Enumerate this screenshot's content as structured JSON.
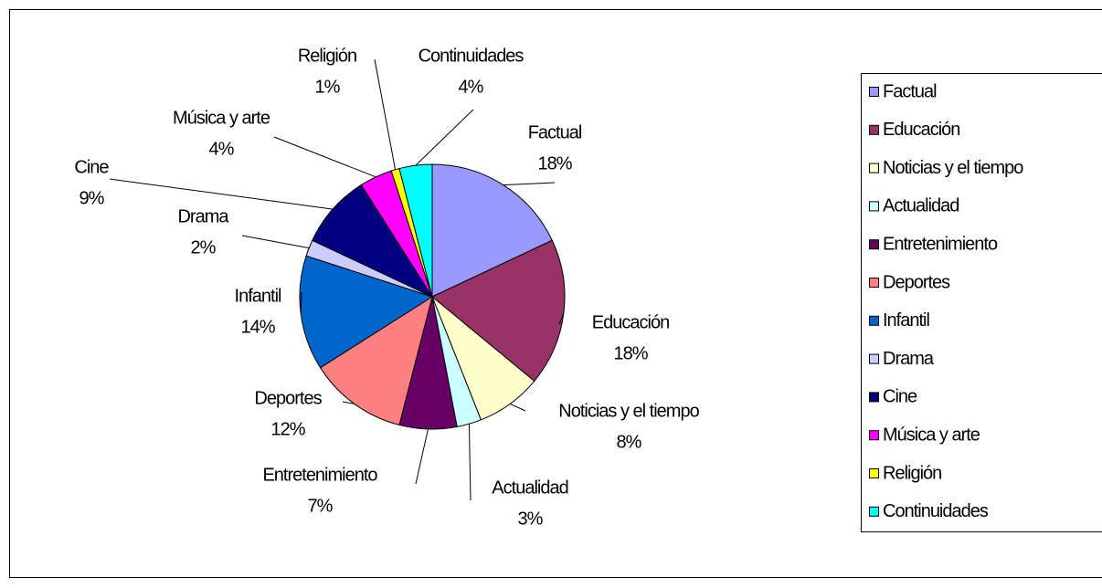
{
  "chart_data": {
    "type": "pie",
    "categories": [
      "Factual",
      "Educación",
      "Noticias y el tiempo",
      "Actualidad",
      "Entretenimiento",
      "Deportes",
      "Infantil",
      "Drama",
      "Cine",
      "Música y arte",
      "Religión",
      "Continuidades"
    ],
    "values": [
      18,
      18,
      8,
      3,
      7,
      12,
      14,
      2,
      9,
      4,
      1,
      4
    ],
    "value_labels": [
      "18%",
      "18%",
      "8%",
      "3%",
      "7%",
      "12%",
      "14%",
      "2%",
      "9%",
      "4%",
      "1%",
      "4%"
    ],
    "colors": [
      "#9999ff",
      "#993366",
      "#ffffcc",
      "#ccffff",
      "#660066",
      "#ff8080",
      "#0066cc",
      "#ccccff",
      "#000080",
      "#ff00ff",
      "#ffff00",
      "#00ffff"
    ],
    "legend": "right"
  }
}
